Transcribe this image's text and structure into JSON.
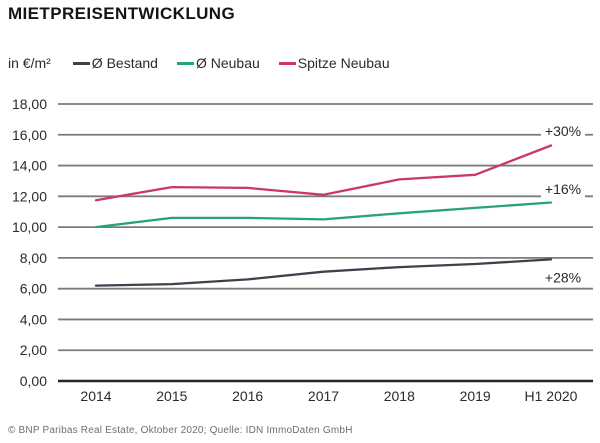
{
  "title": "MIETPREISENTWICKLUNG",
  "unit_label": "in €/m²",
  "footer": "© BNP Paribas Real Estate, Oktober 2020; Quelle: IDN ImmoDaten GmbH",
  "colors": {
    "bestand": "#3a424d",
    "neubau": "#25a47b",
    "spitze": "#c8386e",
    "gridline": "#7b7b7b",
    "axis": "#262626",
    "text": "#2b2b2b",
    "muted": "#6e6e6e"
  },
  "chart_data": {
    "type": "line",
    "title": "MIETPREISENTWICKLUNG",
    "ylabel": "in €/m²",
    "categories": [
      "2014",
      "2015",
      "2016",
      "2017",
      "2018",
      "2019",
      "H1 2020"
    ],
    "series": [
      {
        "name": "Ø Bestand",
        "color_key": "bestand",
        "values": [
          6.2,
          6.3,
          6.6,
          7.1,
          7.4,
          7.6,
          7.9
        ],
        "annotation": "+28%"
      },
      {
        "name": "Ø Neubau",
        "color_key": "neubau",
        "values": [
          10.0,
          10.6,
          10.6,
          10.5,
          10.9,
          11.25,
          11.6
        ],
        "annotation": "+16%"
      },
      {
        "name": "Spitze Neubau",
        "color_key": "spitze",
        "values": [
          11.75,
          12.6,
          12.55,
          12.1,
          13.1,
          13.4,
          15.3
        ],
        "annotation": "+30%"
      }
    ],
    "ylim": [
      0,
      18
    ],
    "y_axis": {
      "tick_values": [
        0,
        2,
        4,
        6,
        8,
        10,
        12,
        14,
        16,
        18
      ],
      "tick_labels": [
        "0,00",
        "2,00",
        "4,00",
        "6,00",
        "8,00",
        "10,00",
        "12,00",
        "14,00",
        "16,00",
        "18,00"
      ]
    },
    "grid": "horizontal",
    "legend_position": "top"
  }
}
